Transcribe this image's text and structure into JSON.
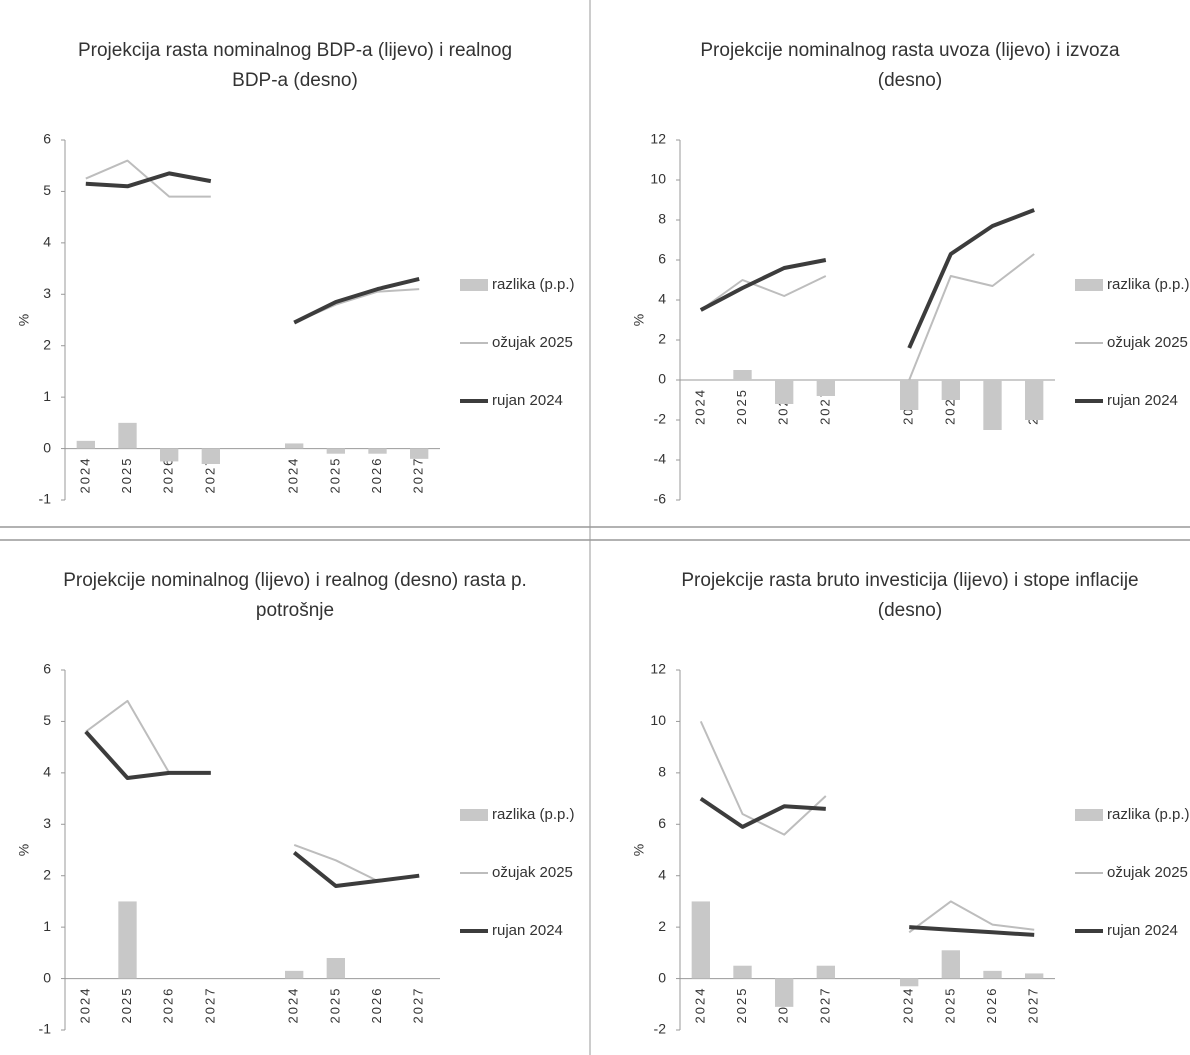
{
  "chart_data": [
    {
      "type": "line",
      "title": "Projekcija rasta nominalnog BDP-a (lijevo) i realnog BDP-a (desno)",
      "ylabel": "%",
      "categories": [
        "2024",
        "2025",
        "2026",
        "2027",
        null,
        "2024",
        "2025",
        "2026",
        "2027"
      ],
      "ylim": [
        -1,
        6
      ],
      "yticks": [
        -1,
        0,
        1,
        2,
        3,
        4,
        5,
        6
      ],
      "series": [
        {
          "name": "razlika (p.p.)",
          "type": "bar",
          "color": "#c8c8c8",
          "values": [
            0.15,
            0.5,
            -0.25,
            -0.3,
            null,
            0.1,
            -0.1,
            -0.1,
            -0.2
          ]
        },
        {
          "name": "ožujak 2025",
          "type": "line",
          "color": "#bdbdbd",
          "values": [
            5.25,
            5.6,
            4.9,
            4.9,
            null,
            2.45,
            2.8,
            3.05,
            3.1
          ]
        },
        {
          "name": "rujan 2024",
          "type": "line",
          "color": "#3c3c3c",
          "values": [
            5.15,
            5.1,
            5.35,
            5.2,
            null,
            2.45,
            2.85,
            3.1,
            3.3
          ]
        }
      ]
    },
    {
      "type": "line",
      "title": "Projekcije nominalnog rasta uvoza (lijevo) i izvoza (desno)",
      "ylabel": "%",
      "categories": [
        "2024",
        "2025",
        "2026",
        "2027",
        null,
        "2024",
        "2025",
        "2026",
        "2027"
      ],
      "ylim": [
        -6,
        12
      ],
      "yticks": [
        -6,
        -4,
        -2,
        0,
        2,
        4,
        6,
        8,
        10,
        12
      ],
      "series": [
        {
          "name": "razlika (p.p.)",
          "type": "bar",
          "color": "#c8c8c8",
          "values": [
            0,
            0.5,
            -1.2,
            -0.8,
            null,
            -1.5,
            -1.0,
            -2.5,
            -2.0
          ]
        },
        {
          "name": "ožujak 2025",
          "type": "line",
          "color": "#bdbdbd",
          "values": [
            3.5,
            5.0,
            4.2,
            5.2,
            null,
            0,
            5.2,
            4.7,
            6.3
          ]
        },
        {
          "name": "rujan 2024",
          "type": "line",
          "color": "#3c3c3c",
          "values": [
            3.5,
            4.6,
            5.6,
            6.0,
            null,
            1.6,
            6.3,
            7.7,
            8.5
          ]
        }
      ]
    },
    {
      "type": "line",
      "title": "Projekcije nominalnog (lijevo) i realnog (desno) rasta p. potrošnje",
      "ylabel": "%",
      "categories": [
        "2024",
        "2025",
        "2026",
        "2027",
        null,
        "2024",
        "2025",
        "2026",
        "2027"
      ],
      "ylim": [
        -1,
        6
      ],
      "yticks": [
        -1,
        0,
        1,
        2,
        3,
        4,
        5,
        6
      ],
      "series": [
        {
          "name": "razlika (p.p.)",
          "type": "bar",
          "color": "#c8c8c8",
          "values": [
            0,
            1.5,
            0,
            0,
            null,
            0.15,
            0.4,
            0,
            0
          ]
        },
        {
          "name": "ožujak 2025",
          "type": "line",
          "color": "#bdbdbd",
          "values": [
            4.8,
            5.4,
            4.0,
            4.0,
            null,
            2.6,
            2.3,
            1.9,
            2.0
          ]
        },
        {
          "name": "rujan 2024",
          "type": "line",
          "color": "#3c3c3c",
          "values": [
            4.8,
            3.9,
            4.0,
            4.0,
            null,
            2.45,
            1.8,
            1.9,
            2.0
          ]
        }
      ]
    },
    {
      "type": "line",
      "title": "Projekcije rasta bruto investicija (lijevo) i stope inflacije (desno)",
      "ylabel": "%",
      "categories": [
        "2024",
        "2025",
        "2026",
        "2027",
        null,
        "2024",
        "2025",
        "2026",
        "2027"
      ],
      "ylim": [
        -2,
        12
      ],
      "yticks": [
        -2,
        0,
        2,
        4,
        6,
        8,
        10,
        12
      ],
      "series": [
        {
          "name": "razlika (p.p.)",
          "type": "bar",
          "color": "#c8c8c8",
          "values": [
            3.0,
            0.5,
            -1.1,
            0.5,
            null,
            -0.3,
            1.1,
            0.3,
            0.2
          ]
        },
        {
          "name": "ožujak 2025",
          "type": "line",
          "color": "#bdbdbd",
          "values": [
            10,
            6.4,
            5.6,
            7.1,
            null,
            1.8,
            3.0,
            2.1,
            1.9
          ]
        },
        {
          "name": "rujan 2024",
          "type": "line",
          "color": "#3c3c3c",
          "values": [
            7.0,
            5.9,
            6.7,
            6.6,
            null,
            2.0,
            1.9,
            1.8,
            1.7
          ]
        }
      ]
    }
  ]
}
